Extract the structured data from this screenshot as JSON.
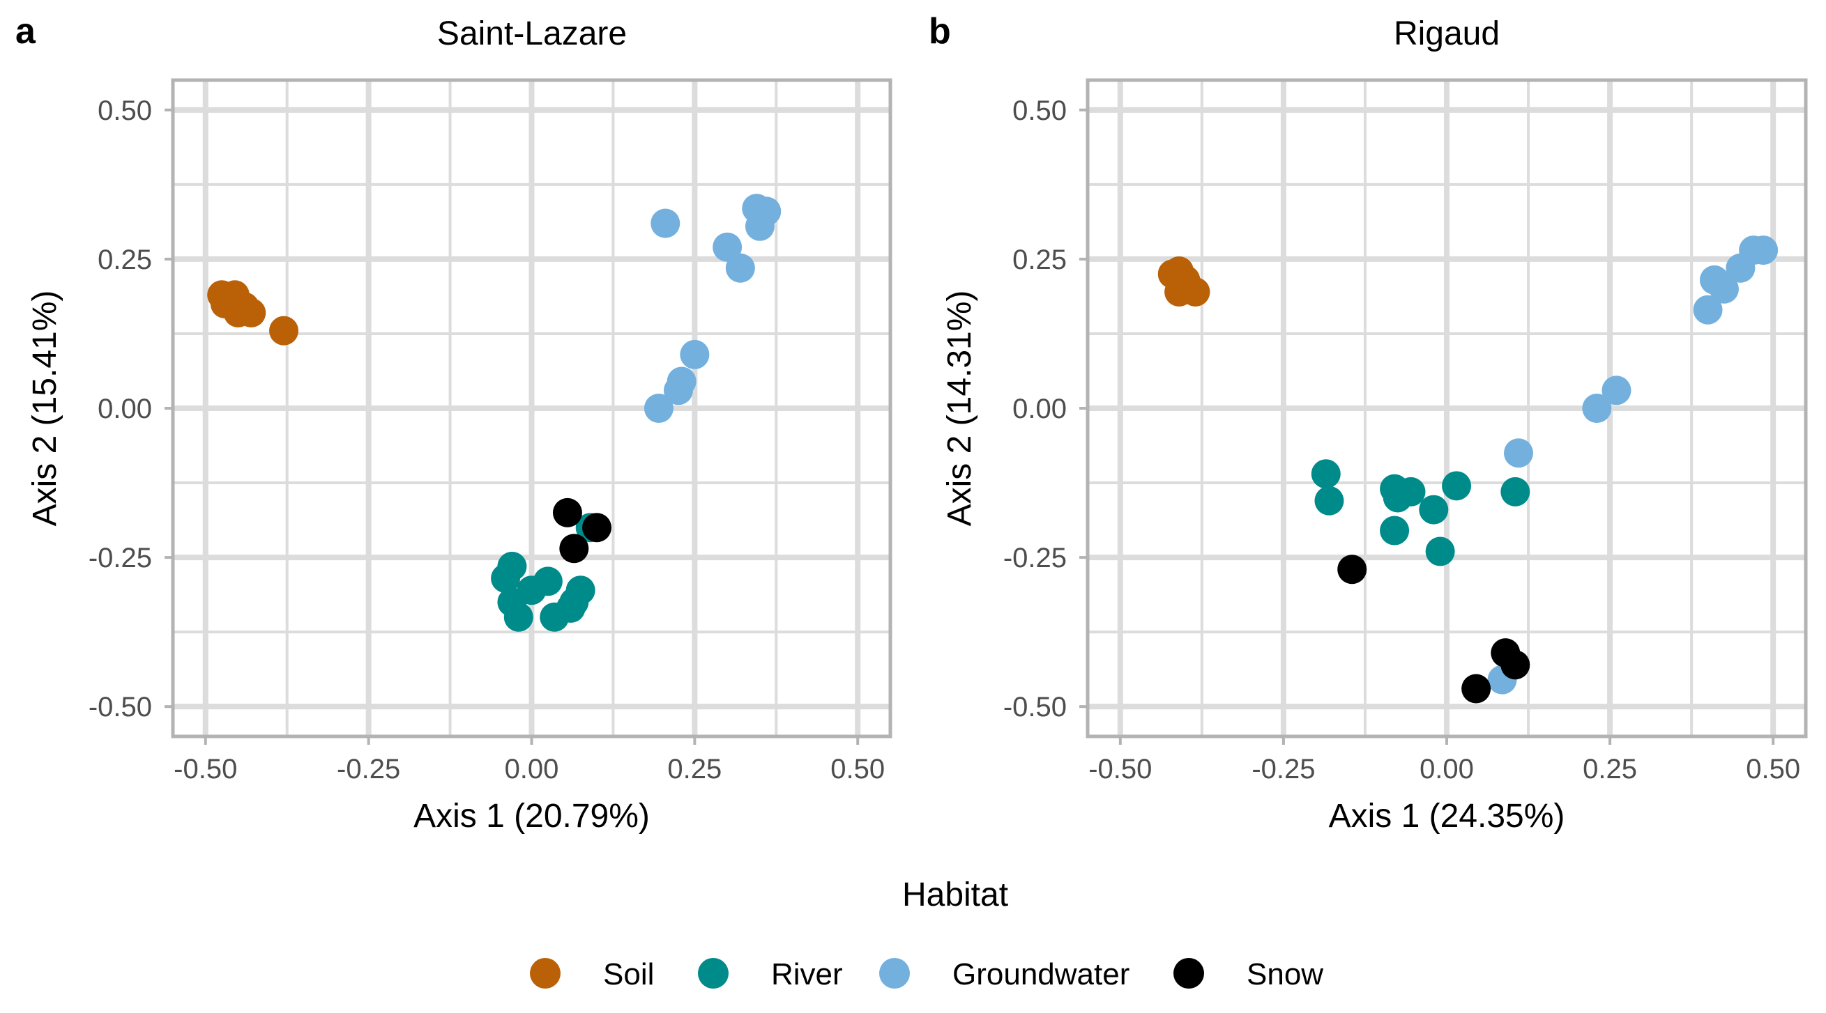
{
  "chart_data": [
    {
      "type": "scatter",
      "panel_letter": "a",
      "title": "Saint-Lazare",
      "xlabel": "Axis 1 (20.79%)",
      "ylabel": "Axis 2 (15.41%)",
      "xlim": [
        -0.55,
        0.55
      ],
      "ylim": [
        -0.55,
        0.55
      ],
      "xticks": [
        -0.5,
        -0.25,
        0.0,
        0.25,
        0.5
      ],
      "yticks": [
        -0.5,
        -0.25,
        0.0,
        0.25,
        0.5
      ],
      "xtick_labels": [
        "-0.50",
        "-0.25",
        "0.00",
        "0.25",
        "0.50"
      ],
      "ytick_labels": [
        "-0.50",
        "-0.25",
        "0.00",
        "0.25",
        "0.50"
      ],
      "grid": true,
      "series": [
        {
          "name": "Soil",
          "x": [
            -0.475,
            -0.47,
            -0.455,
            -0.45,
            -0.44,
            -0.43,
            -0.38
          ],
          "y": [
            0.19,
            0.175,
            0.19,
            0.16,
            0.17,
            0.16,
            0.13
          ]
        },
        {
          "name": "River",
          "x": [
            -0.04,
            -0.03,
            -0.03,
            -0.02,
            0.0,
            0.025,
            0.035,
            0.06,
            0.065,
            0.075,
            0.09
          ],
          "y": [
            -0.285,
            -0.265,
            -0.325,
            -0.35,
            -0.305,
            -0.29,
            -0.35,
            -0.335,
            -0.325,
            -0.305,
            -0.2
          ]
        },
        {
          "name": "Groundwater",
          "x": [
            0.195,
            0.205,
            0.225,
            0.23,
            0.25,
            0.3,
            0.32,
            0.345,
            0.35,
            0.36
          ],
          "y": [
            0.0,
            0.31,
            0.03,
            0.045,
            0.09,
            0.27,
            0.235,
            0.335,
            0.305,
            0.33
          ]
        },
        {
          "name": "Snow",
          "x": [
            0.055,
            0.065,
            0.1
          ],
          "y": [
            -0.175,
            -0.235,
            -0.2
          ]
        }
      ]
    },
    {
      "type": "scatter",
      "panel_letter": "b",
      "title": "Rigaud",
      "xlabel": "Axis 1 (24.35%)",
      "ylabel": "Axis 2 (14.31%)",
      "xlim": [
        -0.55,
        0.55
      ],
      "ylim": [
        -0.55,
        0.55
      ],
      "xticks": [
        -0.5,
        -0.25,
        0.0,
        0.25,
        0.5
      ],
      "yticks": [
        -0.5,
        -0.25,
        0.0,
        0.25,
        0.5
      ],
      "xtick_labels": [
        "-0.50",
        "-0.25",
        "0.00",
        "0.25",
        "0.50"
      ],
      "ytick_labels": [
        "-0.50",
        "-0.25",
        "0.00",
        "0.25",
        "0.50"
      ],
      "grid": true,
      "series": [
        {
          "name": "Soil",
          "x": [
            -0.42,
            -0.41,
            -0.4,
            -0.41,
            -0.395,
            -0.385
          ],
          "y": [
            0.225,
            0.23,
            0.215,
            0.195,
            0.2,
            0.195
          ]
        },
        {
          "name": "River",
          "x": [
            -0.185,
            -0.18,
            -0.08,
            -0.075,
            -0.08,
            -0.055,
            -0.02,
            0.015,
            -0.01,
            0.105
          ],
          "y": [
            -0.11,
            -0.155,
            -0.135,
            -0.15,
            -0.205,
            -0.14,
            -0.17,
            -0.13,
            -0.24,
            -0.14
          ]
        },
        {
          "name": "Groundwater",
          "x": [
            0.085,
            0.11,
            0.23,
            0.26,
            0.4,
            0.41,
            0.425,
            0.45,
            0.47,
            0.485
          ],
          "y": [
            -0.455,
            -0.075,
            0.0,
            0.03,
            0.165,
            0.215,
            0.2,
            0.235,
            0.265,
            0.265
          ]
        },
        {
          "name": "Snow",
          "x": [
            -0.145,
            0.045,
            0.09,
            0.105
          ],
          "y": [
            -0.27,
            -0.47,
            -0.41,
            -0.43
          ]
        }
      ]
    }
  ],
  "legend": {
    "title": "Habitat",
    "items": [
      {
        "name": "Soil",
        "color": "#BA6108"
      },
      {
        "name": "River",
        "color": "#008B8B"
      },
      {
        "name": "Groundwater",
        "color": "#74B0DD"
      },
      {
        "name": "Snow",
        "color": "#000000"
      }
    ]
  },
  "colors": {
    "Soil": "#BA6108",
    "River": "#008B8B",
    "Groundwater": "#74B0DD",
    "Snow": "#000000"
  }
}
